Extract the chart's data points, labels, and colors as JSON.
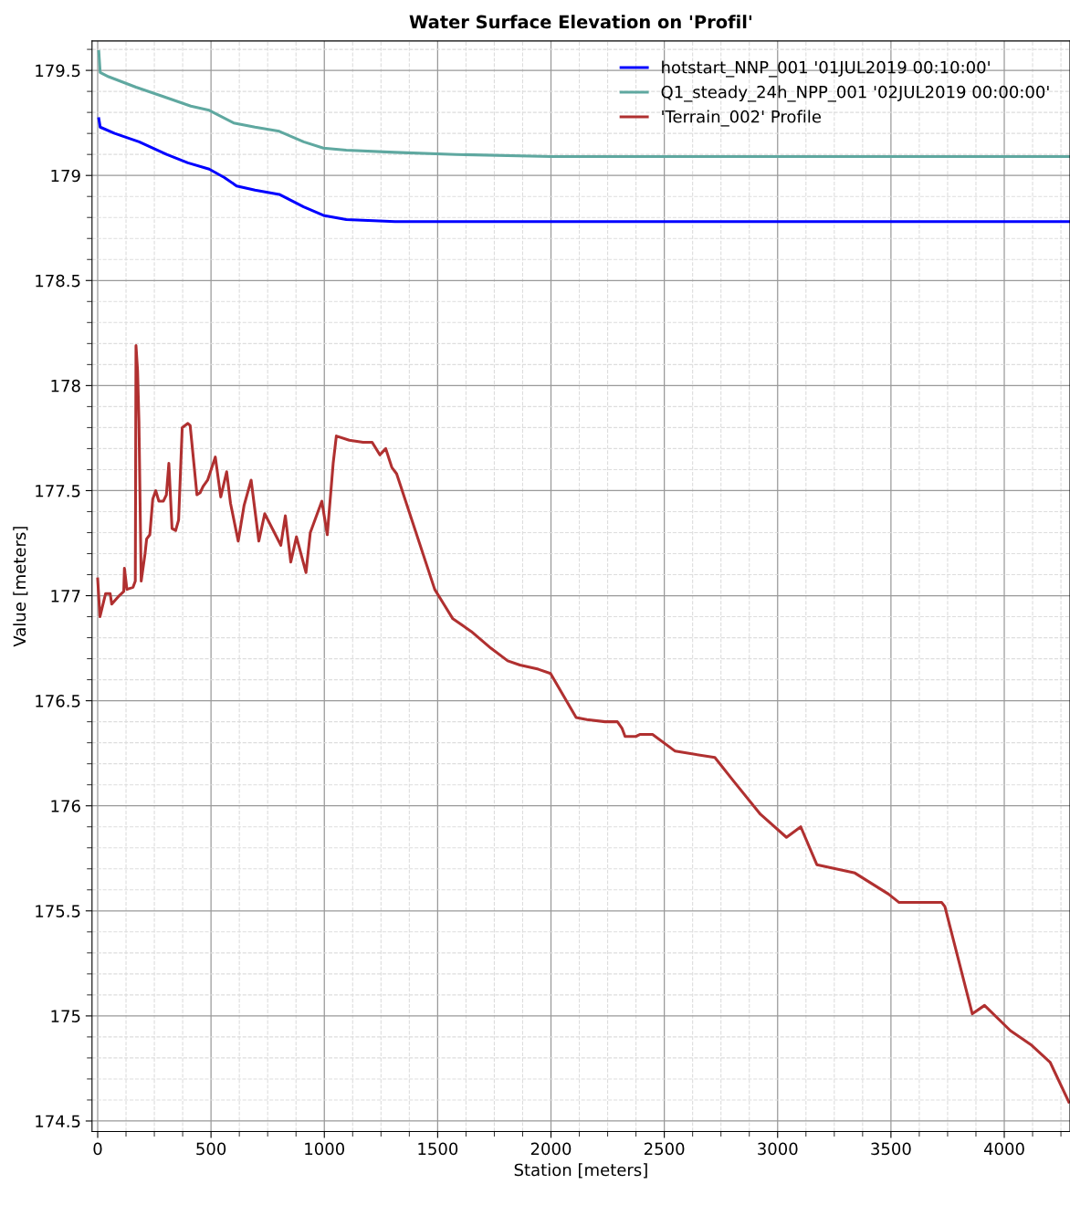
{
  "chart_data": {
    "type": "line",
    "title": "Water Surface Elevation on 'Profil'",
    "xlabel": "Station [meters]",
    "ylabel": "Value [meters]",
    "xlim": [
      -25,
      4290
    ],
    "ylim": [
      174.45,
      179.64
    ],
    "xticks": [
      0,
      500,
      1000,
      1500,
      2000,
      2500,
      3000,
      3500,
      4000
    ],
    "yticks": [
      174.5,
      175,
      175.5,
      176,
      176.5,
      177,
      177.5,
      178,
      178.5,
      179,
      179.5
    ],
    "grid": true,
    "legend": "top right",
    "line_style": "solid",
    "marker": "none",
    "series": [
      {
        "name": "hotstart_NNP_001 '01JUL2019 00:10:00'",
        "color": "#0000ff",
        "x": [
          5,
          11,
          75,
          183,
          304,
          398,
          492,
          559,
          613,
          694,
          801,
          909,
          996,
          1097,
          1312,
          1581,
          2000,
          3000,
          4290
        ],
        "values": [
          179.27,
          179.23,
          179.2,
          179.16,
          179.1,
          179.06,
          179.03,
          178.99,
          178.95,
          178.93,
          178.91,
          178.85,
          178.81,
          178.79,
          178.78,
          178.78,
          178.78,
          178.78,
          178.78
        ]
      },
      {
        "name": "Q1_steady_24h_NPP_001 '02JUL2019 00:00:00'",
        "color": "#5fa8a0",
        "x": [
          5,
          11,
          48,
          169,
          304,
          411,
          492,
          600,
          694,
          801,
          909,
          996,
          1097,
          1310,
          1581,
          2000,
          3000,
          4290
        ],
        "values": [
          179.59,
          179.49,
          179.47,
          179.42,
          179.37,
          179.33,
          179.31,
          179.25,
          179.23,
          179.21,
          179.16,
          179.13,
          179.12,
          179.11,
          179.1,
          179.09,
          179.09,
          179.09
        ]
      },
      {
        "name": "'Terrain_002' Profile",
        "color": "#b03030",
        "x": [
          0,
          10,
          35,
          55,
          62,
          95,
          115,
          118,
          129,
          156,
          166,
          169,
          176,
          182,
          192,
          209,
          216,
          230,
          243,
          256,
          270,
          290,
          303,
          314,
          328,
          344,
          357,
          373,
          398,
          408,
          438,
          452,
          465,
          485,
          519,
          543,
          569,
          586,
          620,
          646,
          677,
          711,
          737,
          808,
          828,
          852,
          877,
          919,
          938,
          989,
          1013,
          1039,
          1053,
          1110,
          1171,
          1211,
          1245,
          1271,
          1298,
          1319,
          1487,
          1527,
          1567,
          1648,
          1735,
          1809,
          1863,
          1944,
          1998,
          2111,
          2158,
          2239,
          2293,
          2313,
          2327,
          2374,
          2394,
          2448,
          2548,
          2723,
          2804,
          2924,
          3039,
          3102,
          3173,
          3341,
          3489,
          3536,
          3724,
          3738,
          3859,
          3913,
          4027,
          4121,
          4202,
          4285
        ],
        "values": [
          177.08,
          176.9,
          177.01,
          177.01,
          176.96,
          177.0,
          177.02,
          177.13,
          177.03,
          177.04,
          177.07,
          178.19,
          178.07,
          177.83,
          177.07,
          177.2,
          177.27,
          177.29,
          177.46,
          177.5,
          177.45,
          177.45,
          177.48,
          177.63,
          177.32,
          177.31,
          177.36,
          177.8,
          177.82,
          177.81,
          177.48,
          177.49,
          177.52,
          177.55,
          177.66,
          177.47,
          177.59,
          177.44,
          177.26,
          177.43,
          177.55,
          177.26,
          177.39,
          177.24,
          177.38,
          177.16,
          177.28,
          177.11,
          177.3,
          177.45,
          177.29,
          177.63,
          177.76,
          177.74,
          177.73,
          177.73,
          177.67,
          177.7,
          177.61,
          177.58,
          177.03,
          176.96,
          176.89,
          176.83,
          176.75,
          176.69,
          176.67,
          176.65,
          176.63,
          176.42,
          176.41,
          176.4,
          176.4,
          176.37,
          176.33,
          176.33,
          176.34,
          176.34,
          176.26,
          176.23,
          176.12,
          175.96,
          175.85,
          175.9,
          175.72,
          175.68,
          175.58,
          175.54,
          175.54,
          175.52,
          175.01,
          175.05,
          174.93,
          174.86,
          174.78,
          174.59
        ]
      }
    ]
  }
}
